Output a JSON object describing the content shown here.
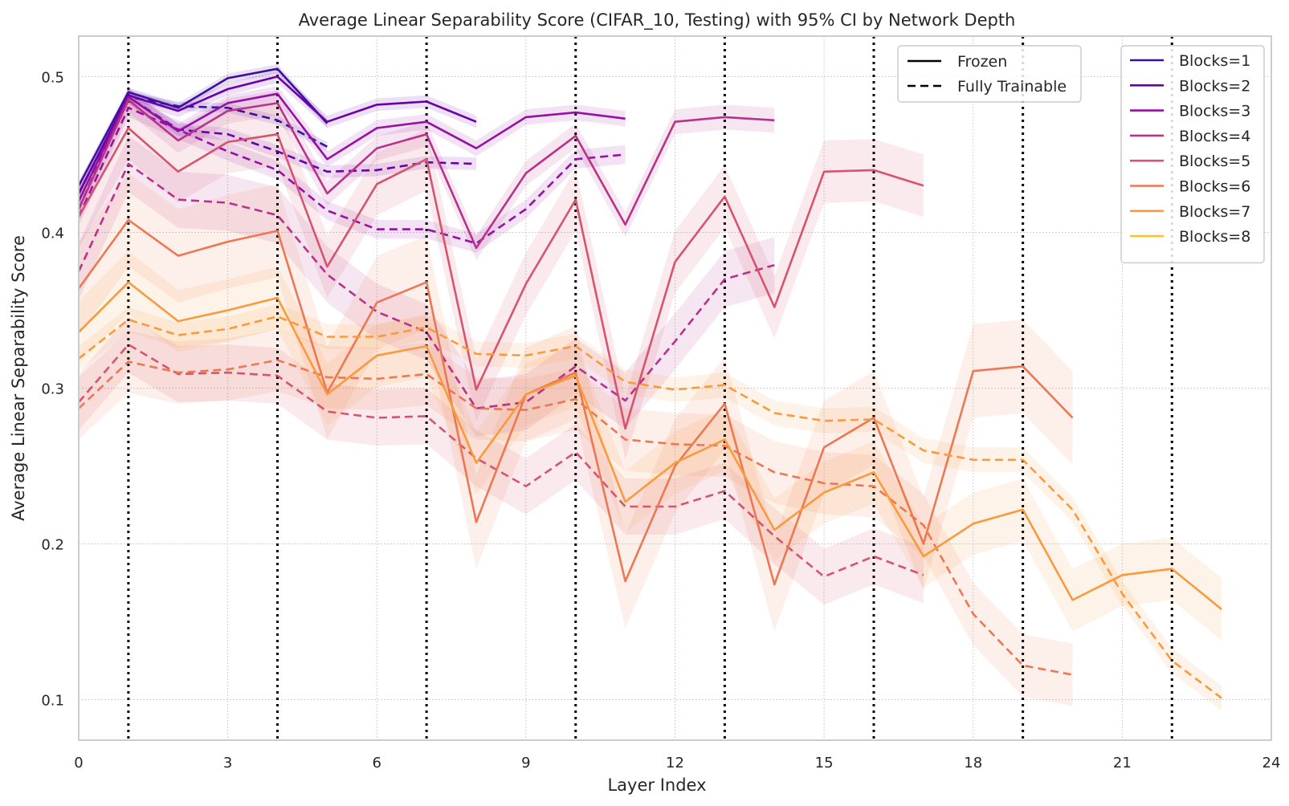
{
  "chart_data": {
    "type": "line",
    "title": "Average Linear Separability Score (CIFAR_10, Testing) with 95% CI by Network Depth",
    "xlabel": "Layer Index",
    "ylabel": "Average Linear Separability Score",
    "xlim": [
      0,
      24
    ],
    "ylim": [
      0.074,
      0.526
    ],
    "xticks": [
      "0",
      "3",
      "6",
      "9",
      "12",
      "15",
      "18",
      "21",
      "24"
    ],
    "xtick_values": [
      0,
      3,
      6,
      9,
      12,
      15,
      18,
      21,
      24
    ],
    "yticks": [
      "0.1",
      "0.2",
      "0.3",
      "0.4",
      "0.5"
    ],
    "ytick_values": [
      0.1,
      0.2,
      0.3,
      0.4,
      0.5
    ],
    "grid": true,
    "vertical_dotted_lines": [
      1,
      4,
      7,
      10,
      13,
      16,
      19,
      22
    ],
    "style_legend": {
      "placement": "top-right",
      "entries": [
        {
          "label": "Frozen",
          "dash": "solid"
        },
        {
          "label": "Fully Trainable",
          "dash": "dashed"
        }
      ]
    },
    "series_legend": {
      "placement": "top-right",
      "entries": [
        {
          "label": "Blocks=1",
          "color": "#3f0fa0"
        },
        {
          "label": "Blocks=2",
          "color": "#6a00a8"
        },
        {
          "label": "Blocks=3",
          "color": "#9511a1"
        },
        {
          "label": "Blocks=4",
          "color": "#b83289"
        },
        {
          "label": "Blocks=5",
          "color": "#d5546e"
        },
        {
          "label": "Blocks=6",
          "color": "#ec7853"
        },
        {
          "label": "Blocks=7",
          "color": "#f99a3e"
        },
        {
          "label": "Blocks=8",
          "color": "#fdc328"
        }
      ]
    },
    "series": [
      {
        "name": "Blocks=1",
        "mode": "Frozen",
        "color": "#3f0fa0",
        "ci": 0.003,
        "x": [
          0,
          1,
          2,
          3,
          4,
          5
        ],
        "y": [
          0.43,
          0.49,
          0.48,
          0.499,
          0.505,
          0.47
        ]
      },
      {
        "name": "Blocks=1",
        "mode": "Fully Trainable",
        "color": "#3f0fa0",
        "ci": 0.003,
        "x": [
          0,
          1,
          2,
          3,
          4,
          5
        ],
        "y": [
          0.425,
          0.487,
          0.481,
          0.48,
          0.472,
          0.455
        ]
      },
      {
        "name": "Blocks=2",
        "mode": "Frozen",
        "color": "#6a00a8",
        "ci": 0.004,
        "x": [
          0,
          1,
          2,
          3,
          4,
          5,
          6,
          7,
          8
        ],
        "y": [
          0.425,
          0.488,
          0.478,
          0.492,
          0.5,
          0.471,
          0.482,
          0.484,
          0.471
        ]
      },
      {
        "name": "Blocks=2",
        "mode": "Fully Trainable",
        "color": "#6a00a8",
        "ci": 0.004,
        "x": [
          0,
          1,
          2,
          3,
          4,
          5,
          6,
          7,
          8
        ],
        "y": [
          0.415,
          0.487,
          0.466,
          0.463,
          0.452,
          0.439,
          0.44,
          0.445,
          0.444
        ]
      },
      {
        "name": "Blocks=3",
        "mode": "Frozen",
        "color": "#9511a1",
        "ci": 0.005,
        "x": [
          0,
          1,
          2,
          3,
          4,
          5,
          6,
          7,
          8,
          9,
          10,
          11
        ],
        "y": [
          0.42,
          0.487,
          0.465,
          0.483,
          0.489,
          0.447,
          0.467,
          0.471,
          0.454,
          0.474,
          0.477,
          0.473
        ]
      },
      {
        "name": "Blocks=3",
        "mode": "Fully Trainable",
        "color": "#9511a1",
        "ci": 0.006,
        "x": [
          0,
          1,
          2,
          3,
          4,
          5,
          6,
          7,
          8,
          9,
          10,
          11
        ],
        "y": [
          0.41,
          0.48,
          0.466,
          0.452,
          0.44,
          0.414,
          0.402,
          0.402,
          0.393,
          0.415,
          0.447,
          0.45
        ]
      },
      {
        "name": "Blocks=4",
        "mode": "Frozen",
        "color": "#b83289",
        "ci": 0.008,
        "x": [
          0,
          1,
          2,
          3,
          4,
          5,
          6,
          7,
          8,
          9,
          10,
          11,
          12,
          13,
          14
        ],
        "y": [
          0.415,
          0.485,
          0.459,
          0.478,
          0.483,
          0.425,
          0.454,
          0.463,
          0.39,
          0.438,
          0.462,
          0.405,
          0.471,
          0.474,
          0.472
        ]
      },
      {
        "name": "Blocks=4",
        "mode": "Fully Trainable",
        "color": "#b83289",
        "ci": 0.018,
        "x": [
          0,
          1,
          2,
          3,
          4,
          5,
          6,
          7,
          8,
          9,
          10,
          11,
          12,
          13,
          14
        ],
        "y": [
          0.375,
          0.444,
          0.421,
          0.419,
          0.411,
          0.373,
          0.349,
          0.336,
          0.287,
          0.291,
          0.314,
          0.292,
          0.33,
          0.37,
          0.379
        ]
      },
      {
        "name": "Blocks=5",
        "mode": "Frozen",
        "color": "#d5546e",
        "ci": 0.02,
        "x": [
          0,
          1,
          2,
          3,
          4,
          5,
          6,
          7,
          8,
          9,
          10,
          11,
          12,
          13,
          14,
          15,
          16,
          17
        ],
        "y": [
          0.41,
          0.467,
          0.439,
          0.458,
          0.463,
          0.378,
          0.431,
          0.447,
          0.299,
          0.367,
          0.421,
          0.274,
          0.381,
          0.423,
          0.352,
          0.439,
          0.44,
          0.43
        ]
      },
      {
        "name": "Blocks=5",
        "mode": "Fully Trainable",
        "color": "#d5546e",
        "ci": 0.018,
        "x": [
          0,
          1,
          2,
          3,
          4,
          5,
          6,
          7,
          8,
          9,
          10,
          11,
          12,
          13,
          14,
          15,
          16,
          17
        ],
        "y": [
          0.291,
          0.328,
          0.309,
          0.31,
          0.308,
          0.285,
          0.281,
          0.282,
          0.255,
          0.237,
          0.259,
          0.224,
          0.224,
          0.234,
          0.205,
          0.179,
          0.192,
          0.18
        ]
      },
      {
        "name": "Blocks=6",
        "mode": "Frozen",
        "color": "#ec7853",
        "ci": 0.03,
        "x": [
          0,
          1,
          2,
          3,
          4,
          5,
          6,
          7,
          8,
          9,
          10,
          11,
          12,
          13,
          14,
          15,
          16,
          17,
          18,
          19,
          20
        ],
        "y": [
          0.364,
          0.408,
          0.385,
          0.394,
          0.401,
          0.297,
          0.355,
          0.368,
          0.214,
          0.296,
          0.31,
          0.176,
          0.25,
          0.29,
          0.174,
          0.262,
          0.281,
          0.2,
          0.311,
          0.314,
          0.281
        ]
      },
      {
        "name": "Blocks=6",
        "mode": "Fully Trainable",
        "color": "#ec7853",
        "ci": 0.02,
        "x": [
          0,
          1,
          2,
          3,
          4,
          5,
          6,
          7,
          8,
          9,
          10,
          11,
          12,
          13,
          14,
          15,
          16,
          17,
          18,
          19,
          20
        ],
        "y": [
          0.287,
          0.317,
          0.31,
          0.312,
          0.318,
          0.307,
          0.306,
          0.309,
          0.287,
          0.286,
          0.293,
          0.267,
          0.264,
          0.263,
          0.246,
          0.239,
          0.237,
          0.212,
          0.155,
          0.122,
          0.116
        ]
      },
      {
        "name": "Blocks=7",
        "mode": "Frozen",
        "color": "#f99a3e",
        "ci": 0.02,
        "x": [
          0,
          1,
          2,
          3,
          4,
          5,
          6,
          7,
          8,
          9,
          10,
          11,
          12,
          13,
          14,
          15,
          16,
          17,
          18,
          19,
          20,
          21,
          22,
          23
        ],
        "y": [
          0.336,
          0.368,
          0.343,
          0.35,
          0.358,
          0.296,
          0.321,
          0.327,
          0.252,
          0.296,
          0.308,
          0.227,
          0.252,
          0.267,
          0.209,
          0.233,
          0.246,
          0.192,
          0.213,
          0.222,
          0.164,
          0.18,
          0.184,
          0.158
        ]
      },
      {
        "name": "Blocks=7",
        "mode": "Fully Trainable",
        "color": "#f99a3e",
        "ci": 0.008,
        "x": [
          0,
          1,
          2,
          3,
          4,
          5,
          6,
          7,
          8,
          9,
          10,
          11,
          12,
          13,
          14,
          15,
          16,
          17,
          18,
          19,
          20,
          21,
          22,
          23
        ],
        "y": [
          0.319,
          0.344,
          0.334,
          0.338,
          0.346,
          0.333,
          0.333,
          0.339,
          0.322,
          0.321,
          0.327,
          0.304,
          0.299,
          0.302,
          0.284,
          0.279,
          0.28,
          0.26,
          0.254,
          0.254,
          0.222,
          0.168,
          0.125,
          0.101
        ]
      }
    ]
  }
}
